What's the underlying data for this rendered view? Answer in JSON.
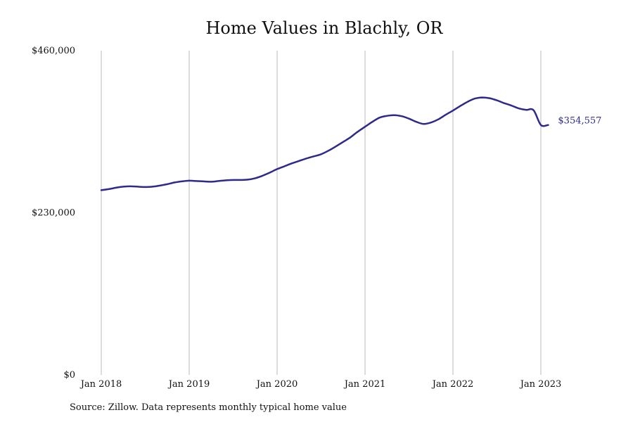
{
  "source_note": "Source: Zillow. Data represents monthly typical home value",
  "colors": {
    "series": "#2e2a8c",
    "grid": "#b8b8b8",
    "text": "#111111"
  },
  "chart_data": {
    "type": "line",
    "title": "Home Values in Blachly, OR",
    "xlabel": "",
    "ylabel": "",
    "ylim": [
      0,
      460000
    ],
    "y_ticks": [
      0,
      230000,
      460000
    ],
    "y_tick_labels": [
      "$0",
      "$230,000",
      "$460,000"
    ],
    "x_range": [
      "2018-01",
      "2023-04"
    ],
    "x_ticks": [
      "2018-01",
      "2019-01",
      "2020-01",
      "2021-01",
      "2022-01",
      "2023-01"
    ],
    "x_tick_labels": [
      "Jan 2018",
      "Jan 2019",
      "Jan 2020",
      "Jan 2021",
      "Jan 2022",
      "Jan 2023"
    ],
    "grid": "vertical lines at x ticks",
    "last_value_label": "$354,557",
    "series": [
      {
        "x": [
          "2018-01",
          "2018-02",
          "2018-03",
          "2018-04",
          "2018-05",
          "2018-06",
          "2018-07",
          "2018-08",
          "2018-09",
          "2018-10",
          "2018-11",
          "2018-12",
          "2019-01",
          "2019-02",
          "2019-03",
          "2019-04",
          "2019-05",
          "2019-06",
          "2019-07",
          "2019-08",
          "2019-09",
          "2019-10",
          "2019-11",
          "2019-12",
          "2020-01",
          "2020-02",
          "2020-03",
          "2020-04",
          "2020-05",
          "2020-06",
          "2020-07",
          "2020-08",
          "2020-09",
          "2020-10",
          "2020-11",
          "2020-12",
          "2021-01",
          "2021-02",
          "2021-03",
          "2021-04",
          "2021-05",
          "2021-06",
          "2021-07",
          "2021-08",
          "2021-09",
          "2021-10",
          "2021-11",
          "2021-12",
          "2022-01",
          "2022-02",
          "2022-03",
          "2022-04",
          "2022-05",
          "2022-06",
          "2022-07",
          "2022-08",
          "2022-09",
          "2022-10",
          "2022-11",
          "2022-12",
          "2023-01",
          "2023-02"
        ],
        "values": [
          262000,
          263500,
          265500,
          267000,
          267500,
          267000,
          266500,
          267000,
          268500,
          270500,
          273000,
          274500,
          275500,
          275000,
          274500,
          274000,
          275000,
          276000,
          276500,
          276500,
          277000,
          279000,
          282500,
          287000,
          292000,
          296000,
          300000,
          303500,
          307000,
          310000,
          313000,
          318000,
          324000,
          330500,
          337000,
          345000,
          352000,
          359000,
          365000,
          367500,
          368500,
          367000,
          363500,
          359000,
          356000,
          358000,
          362500,
          369000,
          375000,
          381500,
          387500,
          392000,
          393500,
          392500,
          389500,
          385500,
          382000,
          378000,
          376000,
          375500,
          354557,
          354557
        ]
      }
    ]
  }
}
